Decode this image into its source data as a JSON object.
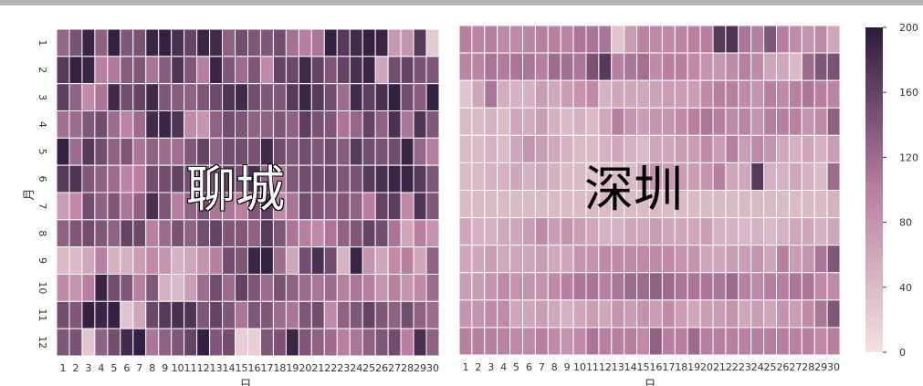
{
  "palette": {
    "low": "#f2e2e0",
    "mid": "#b97fa1",
    "high": "#2d1b3d"
  },
  "chart_data": [
    {
      "type": "heatmap",
      "title": "聊城",
      "xlabel": "日",
      "ylabel": "月",
      "x_ticks": [
        "1",
        "2",
        "3",
        "4",
        "5",
        "6",
        "7",
        "8",
        "9",
        "10",
        "11",
        "12",
        "13",
        "14",
        "15",
        "16",
        "17",
        "18",
        "19",
        "20",
        "21",
        "22",
        "23",
        "24",
        "25",
        "26",
        "27",
        "28",
        "29",
        "30"
      ],
      "y_ticks": [
        "1",
        "2",
        "3",
        "4",
        "5",
        "6",
        "7",
        "8",
        "9",
        "10",
        "11",
        "12"
      ],
      "vmin": 0,
      "vmax": 200,
      "values": [
        [
          125,
          145,
          190,
          130,
          195,
          140,
          145,
          190,
          195,
          180,
          160,
          190,
          185,
          130,
          150,
          140,
          140,
          150,
          115,
          100,
          110,
          195,
          170,
          185,
          195,
          190,
          75,
          80,
          170,
          25
        ],
        [
          170,
          195,
          190,
          100,
          105,
          135,
          140,
          110,
          135,
          175,
          140,
          100,
          190,
          140,
          120,
          140,
          90,
          160,
          155,
          185,
          160,
          140,
          160,
          180,
          190,
          60,
          150,
          160,
          145,
          140
        ],
        [
          165,
          130,
          90,
          110,
          185,
          150,
          160,
          185,
          140,
          135,
          130,
          140,
          155,
          175,
          185,
          150,
          140,
          140,
          170,
          190,
          170,
          150,
          120,
          185,
          165,
          180,
          195,
          150,
          135,
          195
        ],
        [
          115,
          120,
          140,
          150,
          120,
          95,
          120,
          185,
          190,
          175,
          90,
          80,
          130,
          150,
          140,
          130,
          130,
          140,
          130,
          165,
          145,
          140,
          110,
          125,
          160,
          130,
          180,
          110,
          175,
          140
        ],
        [
          195,
          120,
          170,
          150,
          130,
          140,
          110,
          130,
          120,
          115,
          140,
          160,
          130,
          150,
          150,
          145,
          185,
          150,
          140,
          150,
          140,
          150,
          135,
          170,
          150,
          145,
          150,
          190,
          125,
          100
        ],
        [
          170,
          175,
          140,
          130,
          120,
          95,
          100,
          150,
          150,
          160,
          150,
          140,
          140,
          160,
          150,
          180,
          130,
          110,
          140,
          150,
          150,
          155,
          140,
          145,
          170,
          180,
          190,
          190,
          170,
          140
        ],
        [
          70,
          90,
          150,
          130,
          140,
          110,
          130,
          180,
          140,
          100,
          130,
          145,
          110,
          110,
          100,
          140,
          165,
          90,
          110,
          150,
          140,
          135,
          140,
          130,
          100,
          160,
          165,
          90,
          175,
          140
        ],
        [
          130,
          140,
          150,
          140,
          130,
          160,
          155,
          100,
          120,
          145,
          130,
          150,
          160,
          140,
          140,
          130,
          170,
          140,
          110,
          100,
          90,
          110,
          130,
          140,
          160,
          150,
          110,
          60,
          100,
          80
        ],
        [
          40,
          40,
          60,
          100,
          50,
          50,
          70,
          90,
          80,
          50,
          60,
          80,
          100,
          150,
          140,
          190,
          195,
          120,
          60,
          150,
          180,
          150,
          50,
          190,
          80,
          60,
          90,
          100,
          60,
          130
        ],
        [
          90,
          80,
          100,
          190,
          150,
          140,
          100,
          140,
          50,
          40,
          70,
          120,
          150,
          120,
          160,
          140,
          120,
          145,
          130,
          120,
          110,
          120,
          100,
          110,
          100,
          80,
          100,
          80,
          90,
          120
        ],
        [
          150,
          140,
          195,
          190,
          195,
          30,
          60,
          155,
          170,
          180,
          175,
          140,
          160,
          140,
          110,
          140,
          140,
          120,
          110,
          140,
          150,
          90,
          130,
          140,
          160,
          140,
          130,
          150,
          130,
          120
        ],
        [
          140,
          145,
          30,
          130,
          150,
          185,
          195,
          110,
          130,
          140,
          160,
          195,
          140,
          150,
          20,
          20,
          140,
          145,
          190,
          140,
          130,
          120,
          100,
          110,
          130,
          140,
          150,
          100,
          180,
          130
        ]
      ]
    },
    {
      "type": "heatmap",
      "title": "深圳",
      "xlabel": "日",
      "ylabel": "",
      "x_ticks": [
        "1",
        "2",
        "3",
        "4",
        "5",
        "6",
        "7",
        "8",
        "9",
        "10",
        "11",
        "12",
        "13",
        "14",
        "15",
        "16",
        "17",
        "18",
        "19",
        "20",
        "21",
        "22",
        "23",
        "24",
        "25",
        "26",
        "27",
        "28",
        "29",
        "30"
      ],
      "y_ticks": [],
      "vmin": 0,
      "vmax": 200,
      "values": [
        [
          100,
          95,
          100,
          90,
          90,
          95,
          100,
          100,
          95,
          110,
          110,
          110,
          30,
          70,
          95,
          90,
          90,
          95,
          100,
          100,
          170,
          175,
          110,
          100,
          140,
          100,
          90,
          80,
          90,
          60
        ],
        [
          95,
          95,
          110,
          105,
          110,
          110,
          100,
          120,
          115,
          110,
          145,
          170,
          100,
          110,
          115,
          90,
          100,
          100,
          90,
          80,
          75,
          90,
          100,
          90,
          60,
          60,
          40,
          120,
          140,
          145
        ],
        [
          30,
          60,
          110,
          55,
          50,
          50,
          70,
          60,
          70,
          80,
          90,
          50,
          60,
          60,
          60,
          65,
          70,
          70,
          70,
          90,
          100,
          100,
          90,
          80,
          100,
          90,
          100,
          110,
          100,
          95
        ],
        [
          40,
          40,
          50,
          40,
          60,
          55,
          70,
          50,
          40,
          50,
          40,
          60,
          100,
          80,
          70,
          80,
          80,
          90,
          100,
          110,
          100,
          90,
          95,
          80,
          100,
          100,
          100,
          80,
          90,
          130
        ],
        [
          40,
          40,
          50,
          40,
          60,
          80,
          70,
          60,
          50,
          40,
          40,
          50,
          60,
          50,
          40,
          60,
          60,
          70,
          70,
          90,
          70,
          100,
          70,
          90,
          80,
          60,
          50,
          60,
          50,
          70
        ],
        [
          40,
          40,
          50,
          50,
          60,
          50,
          60,
          50,
          40,
          40,
          30,
          40,
          40,
          40,
          60,
          80,
          70,
          70,
          70,
          80,
          100,
          60,
          60,
          170,
          50,
          50,
          60,
          50,
          40,
          120
        ],
        [
          40,
          40,
          40,
          40,
          40,
          40,
          40,
          40,
          40,
          40,
          40,
          40,
          40,
          40,
          40,
          40,
          40,
          40,
          40,
          40,
          40,
          40,
          40,
          40,
          40,
          40,
          40,
          40,
          40,
          50
        ],
        [
          60,
          50,
          50,
          60,
          60,
          70,
          90,
          70,
          80,
          70,
          60,
          50,
          50,
          60,
          60,
          70,
          60,
          60,
          60,
          70,
          50,
          50,
          40,
          50,
          40,
          50,
          60,
          60,
          50,
          60
        ],
        [
          60,
          60,
          70,
          60,
          60,
          60,
          70,
          60,
          60,
          80,
          80,
          90,
          90,
          90,
          90,
          90,
          90,
          80,
          80,
          60,
          60,
          70,
          70,
          80,
          60,
          100,
          70,
          80,
          110,
          140
        ],
        [
          70,
          70,
          80,
          90,
          80,
          80,
          80,
          90,
          100,
          110,
          110,
          100,
          110,
          120,
          120,
          130,
          120,
          110,
          110,
          110,
          110,
          120,
          100,
          90,
          100,
          100,
          110,
          110,
          90,
          90
        ],
        [
          80,
          80,
          90,
          90,
          60,
          60,
          70,
          60,
          50,
          60,
          70,
          60,
          80,
          70,
          80,
          70,
          90,
          70,
          60,
          70,
          70,
          80,
          60,
          70,
          60,
          80,
          70,
          90,
          110,
          140
        ],
        [
          100,
          100,
          100,
          100,
          90,
          90,
          100,
          90,
          80,
          90,
          110,
          100,
          100,
          100,
          90,
          130,
          100,
          100,
          120,
          100,
          100,
          100,
          100,
          100,
          100,
          100,
          100,
          100,
          90,
          100
        ]
      ]
    }
  ],
  "colorbar": {
    "ticks": [
      "0",
      "40",
      "80",
      "120",
      "160",
      "200"
    ],
    "values": [
      0,
      40,
      80,
      120,
      160,
      200
    ]
  }
}
